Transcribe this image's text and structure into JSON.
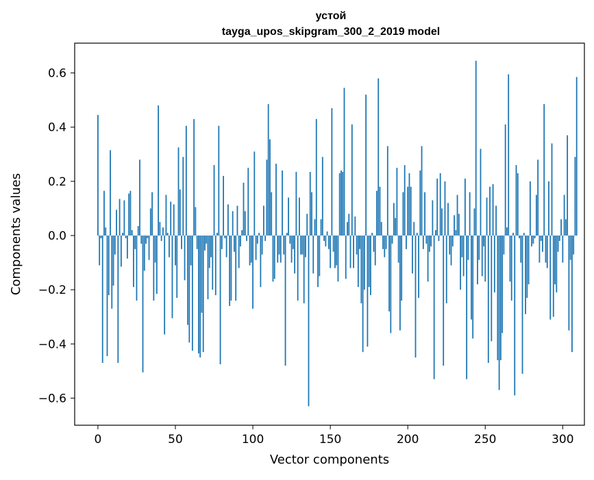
{
  "chart_data": {
    "type": "bar",
    "title": "устой",
    "subtitle": "tayga_upos_skipgram_300_2_2019 model",
    "xlabel": "Vector components",
    "ylabel": "Components values",
    "xlim": [
      -15,
      314
    ],
    "ylim": [
      -0.7,
      0.71
    ],
    "xticks": [
      0,
      50,
      100,
      150,
      200,
      250,
      300
    ],
    "xtick_labels": [
      "0",
      "50",
      "100",
      "150",
      "200",
      "250",
      "300"
    ],
    "yticks": [
      -0.6,
      -0.4,
      -0.2,
      0.0,
      0.2,
      0.4,
      0.6
    ],
    "ytick_labels": [
      "−0.6",
      "−0.4",
      "−0.2",
      "0.0",
      "0.2",
      "0.4",
      "0.6"
    ],
    "grid": false,
    "bar_color": "#1f77b4",
    "series": [
      {
        "x_start": 0,
        "values": [
          0.445,
          -0.11,
          -0.01,
          -0.47,
          0.165,
          0.03,
          -0.445,
          -0.22,
          0.315,
          -0.27,
          -0.185,
          -0.07,
          0.095,
          -0.47,
          0.135,
          -0.115,
          0.01,
          0.13,
          -0.01,
          -0.085,
          0.155,
          0.165,
          0.02,
          -0.19,
          -0.05,
          -0.24,
          0.035,
          0.28,
          -0.03,
          -0.505,
          -0.13,
          -0.03,
          -0.01,
          -0.09,
          0.1,
          0.16,
          -0.24,
          -0.1,
          -0.215,
          0.48,
          0.05,
          -0.02,
          0.03,
          -0.365,
          0.15,
          0.01,
          -0.08,
          0.125,
          -0.305,
          0.115,
          -0.11,
          -0.23,
          0.325,
          0.17,
          -0.05,
          0.29,
          -0.165,
          0.405,
          -0.33,
          -0.395,
          -0.11,
          -0.425,
          0.43,
          0.105,
          -0.05,
          -0.435,
          -0.45,
          -0.285,
          -0.43,
          -0.055,
          -0.03,
          -0.235,
          -0.12,
          -0.08,
          -0.2,
          0.26,
          -0.22,
          0.01,
          0.405,
          -0.475,
          -0.05,
          0.22,
          -0.01,
          -0.08,
          0.115,
          -0.26,
          -0.24,
          0.09,
          -0.06,
          -0.24,
          0.11,
          -0.12,
          -0.04,
          0.02,
          0.195,
          0.09,
          -0.02,
          0.25,
          -0.11,
          -0.1,
          -0.27,
          0.31,
          -0.09,
          -0.03,
          0.01,
          -0.19,
          -0.07,
          0.11,
          -0.02,
          0.28,
          0.485,
          0.355,
          0.16,
          -0.17,
          -0.16,
          0.265,
          -0.1,
          -0.07,
          -0.1,
          0.24,
          -0.07,
          -0.48,
          0.01,
          0.14,
          -0.03,
          -0.1,
          -0.05,
          -0.14,
          0.235,
          -0.24,
          0.14,
          -0.07,
          -0.07,
          -0.25,
          -0.08,
          0.08,
          -0.63,
          0.235,
          0.16,
          -0.14,
          0.06,
          0.43,
          -0.19,
          -0.15,
          0.06,
          0.29,
          -0.02,
          -0.04,
          0.015,
          -0.05,
          -0.12,
          0.47,
          -0.06,
          -0.12,
          -0.11,
          -0.17,
          0.23,
          0.24,
          0.235,
          0.545,
          -0.16,
          0.05,
          0.08,
          -0.12,
          0.41,
          -0.12,
          0.07,
          -0.07,
          -0.19,
          -0.05,
          -0.25,
          -0.43,
          -0.2,
          0.52,
          -0.41,
          -0.19,
          -0.22,
          0.01,
          -0.06,
          -0.11,
          0.165,
          0.58,
          0.18,
          0.05,
          -0.05,
          -0.08,
          -0.05,
          0.33,
          -0.28,
          -0.36,
          -0.03,
          0.12,
          0.065,
          0.25,
          -0.1,
          -0.35,
          -0.24,
          0.16,
          0.26,
          -0.05,
          0.18,
          0.23,
          0.18,
          -0.14,
          0.05,
          -0.45,
          0.01,
          -0.23,
          0.24,
          0.33,
          -0.05,
          0.16,
          -0.03,
          -0.17,
          -0.06,
          -0.04,
          0.13,
          -0.53,
          0.02,
          0.21,
          -0.02,
          0.23,
          0.1,
          -0.48,
          0.2,
          -0.25,
          0.12,
          -0.07,
          -0.11,
          -0.04,
          0.075,
          0.02,
          0.15,
          0.08,
          -0.2,
          -0.08,
          -0.15,
          0.21,
          -0.53,
          -0.09,
          0.16,
          -0.31,
          -0.38,
          0.1,
          0.645,
          -0.18,
          -0.09,
          0.32,
          -0.15,
          -0.04,
          -0.17,
          0.14,
          -0.47,
          0.18,
          -0.39,
          0.19,
          -0.21,
          0.11,
          -0.46,
          -0.57,
          -0.46,
          -0.36,
          -0.07,
          0.41,
          0.03,
          0.595,
          -0.17,
          -0.24,
          0.01,
          -0.59,
          0.26,
          0.23,
          -0.01,
          -0.1,
          -0.51,
          0.01,
          -0.29,
          -0.23,
          -0.18,
          0.2,
          -0.04,
          -0.03,
          -0.01,
          0.15,
          0.28,
          -0.1,
          -0.02,
          -0.06,
          0.485,
          -0.1,
          -0.12,
          0.2,
          -0.31,
          0.34,
          -0.3,
          -0.18,
          -0.21,
          -0.06,
          -0.02,
          0.06,
          -0.1,
          0.15,
          0.06,
          0.37,
          -0.35,
          -0.09,
          -0.43,
          -0.07,
          0.29,
          0.585
        ]
      }
    ]
  }
}
